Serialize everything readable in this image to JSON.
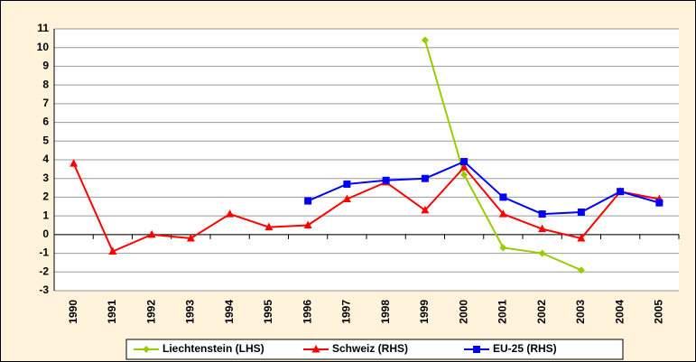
{
  "chart_data": {
    "type": "line",
    "categories": [
      "1990",
      "1991",
      "1992",
      "1993",
      "1994",
      "1995",
      "1996",
      "1997",
      "1998",
      "1999",
      "2000",
      "2001",
      "2002",
      "2003",
      "2004",
      "2005"
    ],
    "series": [
      {
        "name": "Liechtenstein (LHS)",
        "color": "#99cc00",
        "marker": "diamond",
        "values": [
          null,
          null,
          null,
          null,
          null,
          null,
          null,
          null,
          null,
          10.4,
          3.2,
          -0.7,
          -1.0,
          -1.9,
          null,
          null
        ]
      },
      {
        "name": "Schweiz (RHS)",
        "color": "#ff0000",
        "marker": "triangle",
        "values": [
          3.8,
          -0.9,
          0.0,
          -0.2,
          1.1,
          0.4,
          0.5,
          1.9,
          2.8,
          1.3,
          3.6,
          1.1,
          0.3,
          -0.2,
          2.3,
          1.9
        ]
      },
      {
        "name": "EU-25 (RHS)",
        "color": "#0000ff",
        "marker": "square",
        "values": [
          null,
          null,
          null,
          null,
          null,
          null,
          1.8,
          2.7,
          2.9,
          3.0,
          3.9,
          2.0,
          1.1,
          1.2,
          2.3,
          1.7
        ]
      }
    ],
    "ylim": [
      -3,
      11
    ],
    "yticks": [
      -3,
      -2,
      -1,
      0,
      1,
      2,
      3,
      4,
      5,
      6,
      7,
      8,
      9,
      10,
      11
    ],
    "grid": true,
    "legend": "bottom"
  }
}
